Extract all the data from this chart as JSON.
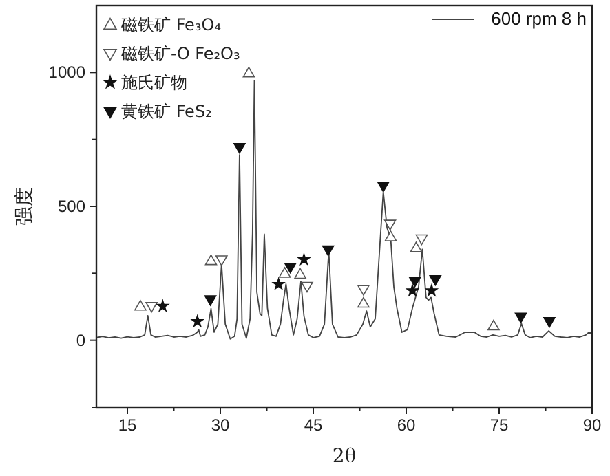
{
  "chart_data": {
    "type": "line",
    "xlabel": "2θ",
    "ylabel": "强度",
    "xlim": [
      10,
      90
    ],
    "ylim": [
      -250,
      1250
    ],
    "xticks": [
      15,
      {
        "value": 22.5,
        "label": null
      },
      30,
      {
        "value": 37.5,
        "label": null
      },
      45,
      {
        "value": 52.5,
        "label": null
      },
      60,
      {
        "value": 67.5,
        "label": null
      },
      75,
      {
        "value": 82.5,
        "label": null
      },
      90
    ],
    "yticks": [
      {
        "value": -250,
        "label": null
      },
      0,
      {
        "value": 250,
        "label": null
      },
      500,
      {
        "value": 750,
        "label": null
      },
      1000
    ],
    "legend": "top left",
    "grid": false,
    "series": [
      {
        "name": "600 rpm 8 h",
        "type": "line",
        "color": "#444444",
        "marker": "none",
        "x": [
          10,
          11,
          12,
          13,
          14,
          15,
          16,
          17,
          17.8,
          18.3,
          18.8,
          19.5,
          20.5,
          21.5,
          22.5,
          23.5,
          24.5,
          25.5,
          26.3,
          26.5,
          26.8,
          27.5,
          28,
          28.5,
          29,
          29.6,
          30.2,
          30.8,
          31.6,
          32.3,
          32.7,
          33.1,
          33.5,
          34.2,
          34.8,
          35.2,
          35.5,
          35.9,
          36.4,
          36.7,
          37.1,
          37.6,
          38.3,
          39,
          39.7,
          40.2,
          40.6,
          41.1,
          41.8,
          42.4,
          43,
          43.5,
          44.2,
          45,
          46,
          46.8,
          47.5,
          48.1,
          49,
          50,
          51,
          52,
          53,
          53.6,
          54.2,
          55,
          55.6,
          56.3,
          56.9,
          57.5,
          58,
          58.5,
          59.3,
          60.2,
          61,
          61.5,
          62,
          62.6,
          63.2,
          63.6,
          64,
          64.5,
          65.3,
          66.5,
          68,
          69.5,
          71,
          72,
          73,
          74,
          75,
          76,
          77,
          78,
          78.6,
          79.2,
          80,
          81,
          82,
          83,
          84,
          85,
          86,
          87,
          88,
          89,
          89.5,
          90
        ],
        "values": [
          10,
          14,
          9,
          12,
          8,
          13,
          10,
          12,
          20,
          92,
          20,
          12,
          15,
          18,
          12,
          15,
          12,
          18,
          30,
          40,
          15,
          20,
          50,
          118,
          30,
          60,
          284,
          60,
          5,
          15,
          80,
          692,
          60,
          8,
          80,
          400,
          970,
          180,
          100,
          92,
          396,
          120,
          20,
          15,
          60,
          150,
          210,
          120,
          20,
          80,
          220,
          90,
          20,
          10,
          15,
          60,
          333,
          60,
          12,
          10,
          12,
          20,
          60,
          109,
          50,
          80,
          300,
          554,
          420,
          380,
          200,
          120,
          30,
          40,
          120,
          160,
          200,
          340,
          160,
          150,
          160,
          100,
          20,
          15,
          12,
          30,
          30,
          15,
          12,
          20,
          15,
          18,
          12,
          20,
          62,
          20,
          10,
          15,
          12,
          35,
          15,
          12,
          10,
          15,
          12,
          20,
          30,
          25
        ]
      },
      {
        "name": "磁铁矿 Fe₃O₄",
        "type": "scatter",
        "marker": "triangle",
        "color": "#555555",
        "x": [
          17.1,
          28.5,
          34.6,
          40.4,
          42.9,
          53.1,
          57.5,
          61.6,
          74.1
        ],
        "values": [
          127,
          297,
          998,
          250,
          246,
          138,
          386,
          345,
          53
        ]
      },
      {
        "name": "磁铁矿-O Fe₂O₃",
        "type": "scatter",
        "marker": "triangle-down",
        "color": "#555555",
        "x": [
          18.9,
          30.2,
          44.0,
          53.1,
          57.4,
          62.5
        ],
        "values": [
          127,
          301,
          202,
          190,
          434,
          379
        ]
      },
      {
        "name": "施氏矿物",
        "type": "scatter",
        "marker": "star",
        "color": "#111111",
        "x": [
          20.7,
          26.3,
          39.4,
          43.5,
          61.0,
          64.1
        ],
        "values": [
          127,
          70,
          209,
          301,
          185,
          185
        ]
      },
      {
        "name": "黄铁矿 FeS₂",
        "type": "scatter",
        "marker": "triangle-down-filled",
        "color": "#111111",
        "x": [
          28.4,
          33.1,
          41.3,
          47.4,
          56.3,
          61.4,
          64.7,
          78.5,
          83.1
        ],
        "values": [
          152,
          720,
          273,
          338,
          576,
          221,
          227,
          87,
          70
        ]
      }
    ]
  }
}
